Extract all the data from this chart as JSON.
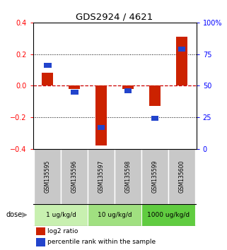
{
  "title": "GDS2924 / 4621",
  "samples": [
    "GSM135595",
    "GSM135596",
    "GSM135597",
    "GSM135598",
    "GSM135599",
    "GSM135600"
  ],
  "log2_ratio": [
    0.08,
    -0.02,
    -0.38,
    -0.02,
    -0.13,
    0.31
  ],
  "percentile_rank": [
    66,
    45,
    17,
    46,
    24,
    79
  ],
  "groups": [
    {
      "label": "1 ug/kg/d",
      "start": 0,
      "end": 1,
      "color": "#c8f0b0"
    },
    {
      "label": "10 ug/kg/d",
      "start": 2,
      "end": 3,
      "color": "#a0e080"
    },
    {
      "label": "1000 ug/kg/d",
      "start": 4,
      "end": 5,
      "color": "#60cc40"
    }
  ],
  "ylim_left": [
    -0.4,
    0.4
  ],
  "ylim_right": [
    0,
    100
  ],
  "left_yticks": [
    -0.4,
    -0.2,
    0.0,
    0.2,
    0.4
  ],
  "right_yticks": [
    0,
    25,
    50,
    75,
    100
  ],
  "right_yticklabels": [
    "0",
    "25",
    "50",
    "75",
    "100%"
  ],
  "bar_color": "#cc2200",
  "square_color": "#2244cc",
  "sample_box_color": "#c8c8c8",
  "zero_line_color": "#cc0000",
  "background_color": "#ffffff"
}
